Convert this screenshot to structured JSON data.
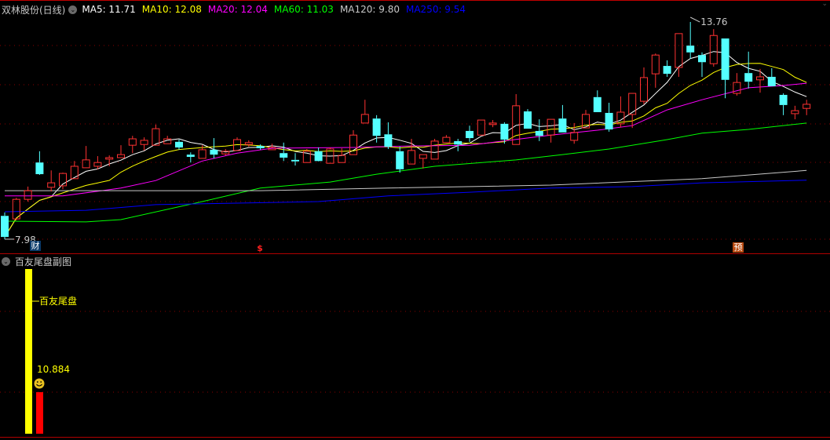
{
  "header": {
    "title": "双林股份(日线)",
    "ma": [
      {
        "label": "MA5: 11.71",
        "color": "#ffffff"
      },
      {
        "label": "MA10: 12.08",
        "color": "#ffff00"
      },
      {
        "label": "MA20: 12.04",
        "color": "#ff00ff"
      },
      {
        "label": "MA60: 11.03",
        "color": "#00ff00"
      },
      {
        "label": "MA120: 9.80",
        "color": "#c8c8c8"
      },
      {
        "label": "MA250: 9.54",
        "color": "#0000ff"
      }
    ]
  },
  "markers": {
    "cai": "财",
    "dollar": "$",
    "yu": "预"
  },
  "sub_panel": {
    "title": "百友尾盘副图",
    "indicator_label": "百友尾盘",
    "value": "10.884",
    "smiley_icon": "smiley-face-icon"
  },
  "colors": {
    "up": "#ff3232",
    "down": "#54ffff",
    "grid": "#8a0000"
  },
  "chart_data": {
    "type": "candlestick",
    "fields": [
      "open",
      "high",
      "low",
      "close"
    ],
    "high_label": "13.76",
    "low_label": "7.98",
    "ylim": [
      7.98,
      13.76
    ],
    "candles": [
      [
        8.6,
        8.69,
        7.98,
        8.04
      ],
      [
        8.52,
        9.08,
        8.48,
        9.04
      ],
      [
        9.04,
        9.38,
        8.98,
        9.27
      ],
      [
        10.02,
        10.32,
        9.69,
        9.71
      ],
      [
        9.36,
        9.81,
        9.25,
        9.48
      ],
      [
        9.4,
        9.75,
        9.31,
        9.73
      ],
      [
        9.59,
        10.06,
        9.59,
        9.92
      ],
      [
        9.88,
        10.46,
        9.88,
        10.09
      ],
      [
        9.92,
        10.19,
        9.84,
        10.02
      ],
      [
        10.11,
        10.21,
        9.92,
        10.15
      ],
      [
        10.15,
        10.48,
        10.15,
        10.23
      ],
      [
        10.48,
        10.73,
        10.27,
        10.65
      ],
      [
        10.5,
        10.69,
        10.34,
        10.61
      ],
      [
        10.48,
        11.03,
        10.48,
        10.92
      ],
      [
        10.52,
        10.73,
        10.52,
        10.65
      ],
      [
        10.57,
        10.63,
        10.36,
        10.42
      ],
      [
        10.23,
        10.29,
        10.02,
        10.17
      ],
      [
        10.13,
        10.48,
        10.13,
        10.36
      ],
      [
        10.36,
        10.67,
        10.13,
        10.23
      ],
      [
        10.25,
        10.38,
        10.21,
        10.32
      ],
      [
        10.34,
        10.69,
        10.34,
        10.63
      ],
      [
        10.5,
        10.61,
        10.44,
        10.55
      ],
      [
        10.46,
        10.5,
        10.36,
        10.4
      ],
      [
        10.36,
        10.52,
        10.36,
        10.42
      ],
      [
        10.27,
        10.55,
        10.06,
        10.15
      ],
      [
        10.09,
        10.27,
        9.94,
        10.05
      ],
      [
        10.02,
        10.38,
        10.02,
        10.32
      ],
      [
        10.32,
        10.42,
        10.05,
        10.06
      ],
      [
        10.0,
        10.42,
        10.0,
        10.38
      ],
      [
        10.02,
        10.4,
        10.02,
        10.21
      ],
      [
        10.23,
        10.88,
        10.23,
        10.75
      ],
      [
        11.07,
        11.69,
        11.07,
        11.3
      ],
      [
        11.19,
        11.28,
        10.55,
        10.73
      ],
      [
        10.77,
        11.09,
        10.38,
        10.44
      ],
      [
        10.32,
        10.44,
        9.75,
        9.84
      ],
      [
        9.98,
        10.65,
        9.98,
        10.34
      ],
      [
        10.13,
        10.23,
        9.86,
        10.23
      ],
      [
        10.11,
        10.65,
        10.11,
        10.59
      ],
      [
        10.55,
        10.75,
        10.55,
        10.69
      ],
      [
        10.59,
        10.65,
        10.32,
        10.5
      ],
      [
        10.86,
        11.0,
        10.57,
        10.67
      ],
      [
        10.75,
        11.15,
        10.75,
        11.15
      ],
      [
        11.03,
        11.15,
        10.96,
        11.07
      ],
      [
        11.05,
        11.09,
        10.52,
        10.63
      ],
      [
        10.5,
        11.84,
        10.5,
        11.53
      ],
      [
        11.38,
        11.44,
        10.92,
        10.92
      ],
      [
        10.86,
        11.17,
        10.59,
        10.73
      ],
      [
        10.75,
        11.17,
        10.55,
        11.17
      ],
      [
        11.19,
        11.55,
        10.82,
        10.82
      ],
      [
        10.61,
        11.07,
        10.52,
        10.82
      ],
      [
        10.94,
        11.42,
        10.94,
        11.3
      ],
      [
        11.76,
        11.94,
        11.36,
        11.36
      ],
      [
        11.34,
        11.61,
        10.84,
        10.9
      ],
      [
        11.05,
        11.78,
        10.96,
        11.36
      ],
      [
        11.3,
        11.86,
        10.94,
        11.86
      ],
      [
        11.65,
        12.55,
        11.57,
        12.28
      ],
      [
        12.38,
        12.92,
        12.01,
        12.88
      ],
      [
        12.59,
        12.74,
        12.3,
        12.38
      ],
      [
        12.55,
        13.45,
        12.3,
        13.45
      ],
      [
        13.13,
        13.76,
        12.78,
        12.95
      ],
      [
        12.88,
        12.95,
        12.3,
        12.69
      ],
      [
        12.65,
        13.57,
        12.57,
        13.4
      ],
      [
        13.32,
        13.32,
        11.73,
        12.22
      ],
      [
        11.86,
        12.4,
        11.8,
        12.15
      ],
      [
        12.4,
        12.97,
        11.99,
        12.17
      ],
      [
        12.22,
        12.51,
        11.88,
        12.3
      ],
      [
        12.3,
        12.53,
        12.05,
        12.05
      ],
      [
        11.82,
        11.86,
        11.28,
        11.55
      ],
      [
        11.32,
        11.53,
        11.17,
        11.4
      ],
      [
        11.46,
        11.69,
        11.28,
        11.57
      ]
    ],
    "moving_averages": [
      {
        "name": "MA5",
        "period": 5,
        "color": "#ffffff"
      },
      {
        "name": "MA10",
        "period": 10,
        "color": "#ffff00"
      },
      {
        "name": "MA20",
        "color": "#ff00ff",
        "points": [
          [
            0,
            9.13
          ],
          [
            5,
            9.13
          ],
          [
            10,
            9.34
          ],
          [
            13,
            9.54
          ],
          [
            17,
            10.06
          ],
          [
            20,
            10.27
          ],
          [
            23,
            10.4
          ],
          [
            30,
            10.42
          ],
          [
            35,
            10.46
          ],
          [
            40,
            10.48
          ],
          [
            47,
            10.75
          ],
          [
            51,
            10.88
          ],
          [
            54,
            11.0
          ],
          [
            57,
            11.42
          ],
          [
            60,
            11.69
          ],
          [
            64,
            12.01
          ],
          [
            67,
            12.07
          ],
          [
            69,
            12.13
          ]
        ]
      },
      {
        "name": "MA60",
        "color": "#00ff00",
        "points": [
          [
            0,
            8.46
          ],
          [
            7,
            8.44
          ],
          [
            10,
            8.5
          ],
          [
            17,
            8.98
          ],
          [
            22,
            9.34
          ],
          [
            28,
            9.5
          ],
          [
            32,
            9.71
          ],
          [
            37,
            9.92
          ],
          [
            44,
            10.09
          ],
          [
            48,
            10.23
          ],
          [
            52,
            10.38
          ],
          [
            57,
            10.63
          ],
          [
            60,
            10.8
          ],
          [
            64,
            10.9
          ],
          [
            69,
            11.07
          ]
        ]
      },
      {
        "name": "MA120",
        "color": "#c8c8c8",
        "points": [
          [
            0,
            9.27
          ],
          [
            22,
            9.27
          ],
          [
            33,
            9.34
          ],
          [
            47,
            9.42
          ],
          [
            60,
            9.59
          ],
          [
            69,
            9.81
          ]
        ]
      },
      {
        "name": "MA250",
        "color": "#0000ff",
        "points": [
          [
            0,
            8.71
          ],
          [
            7,
            8.75
          ],
          [
            13,
            8.9
          ],
          [
            20,
            8.94
          ],
          [
            27,
            8.98
          ],
          [
            33,
            9.13
          ],
          [
            40,
            9.23
          ],
          [
            47,
            9.34
          ],
          [
            54,
            9.38
          ],
          [
            60,
            9.48
          ],
          [
            69,
            9.55
          ]
        ]
      }
    ]
  }
}
